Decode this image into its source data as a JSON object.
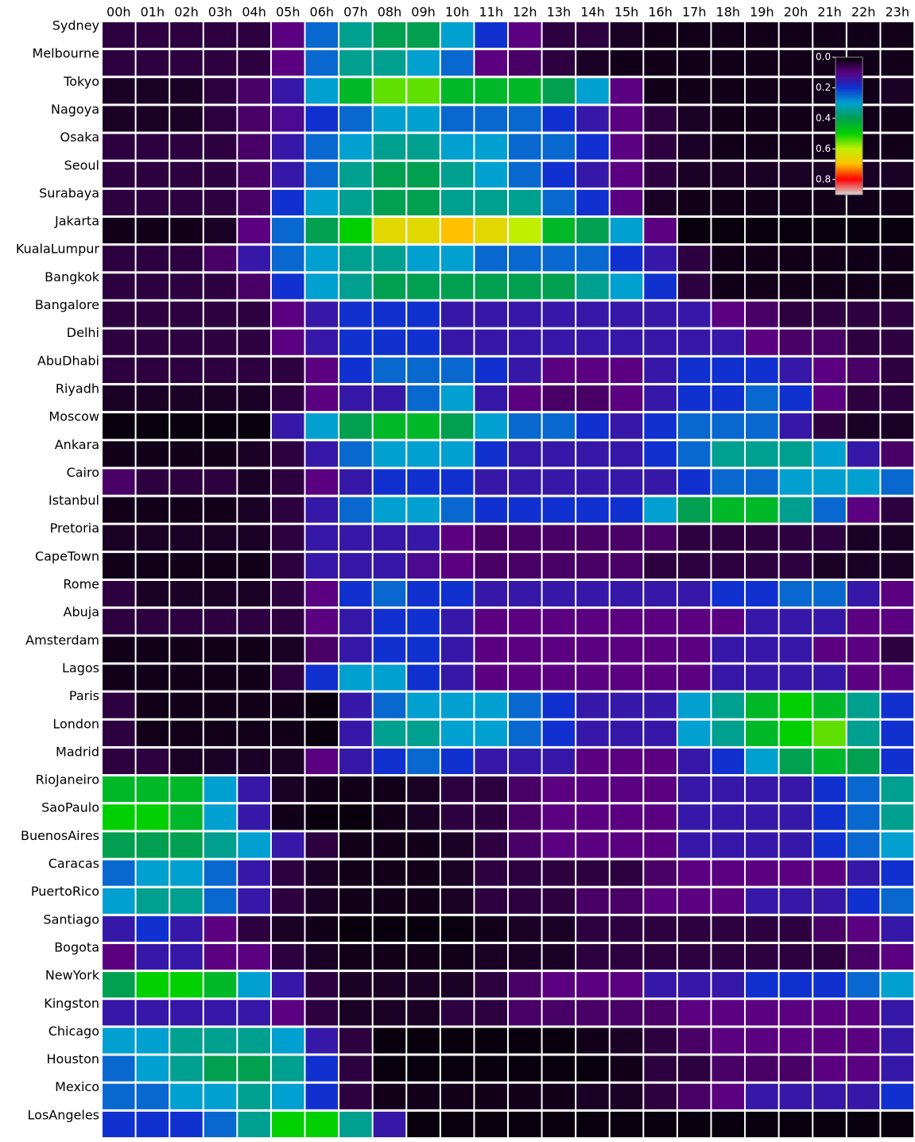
{
  "chart_data": {
    "type": "heatmap",
    "categories": [
      "00h",
      "01h",
      "02h",
      "03h",
      "04h",
      "05h",
      "06h",
      "07h",
      "08h",
      "09h",
      "10h",
      "11h",
      "12h",
      "13h",
      "14h",
      "15h",
      "16h",
      "17h",
      "18h",
      "19h",
      "20h",
      "21h",
      "22h",
      "23h"
    ],
    "y_categories": [
      "Sydney",
      "Melbourne",
      "Tokyo",
      "Nagoya",
      "Osaka",
      "Seoul",
      "Surabaya",
      "Jakarta",
      "KualaLumpur",
      "Bangkok",
      "Bangalore",
      "Delhi",
      "AbuDhabi",
      "Riyadh",
      "Moscow",
      "Ankara",
      "Cairo",
      "Istanbul",
      "Pretoria",
      "CapeTown",
      "Rome",
      "Abuja",
      "Amsterdam",
      "Lagos",
      "Paris",
      "London",
      "Madrid",
      "RioJaneiro",
      "SaoPaulo",
      "BuenosAires",
      "Caracas",
      "PuertoRico",
      "Santiago",
      "Bogota",
      "NewYork",
      "Kingston",
      "Chicago",
      "Houston",
      "Mexico",
      "LosAngeles"
    ],
    "values": [
      [
        0.05,
        0.05,
        0.05,
        0.05,
        0.05,
        0.1,
        0.25,
        0.35,
        0.4,
        0.4,
        0.3,
        0.2,
        0.1,
        0.05,
        0.05,
        0.03,
        0.02,
        0.02,
        0.02,
        0.02,
        0.02,
        0.02,
        0.02,
        0.02
      ],
      [
        0.05,
        0.05,
        0.05,
        0.05,
        0.05,
        0.1,
        0.25,
        0.35,
        0.35,
        0.3,
        0.25,
        0.1,
        0.08,
        0.05,
        0.03,
        0.02,
        0.02,
        0.02,
        0.02,
        0.02,
        0.02,
        0.02,
        0.02,
        0.02
      ],
      [
        0.03,
        0.03,
        0.03,
        0.05,
        0.08,
        0.15,
        0.3,
        0.45,
        0.55,
        0.55,
        0.45,
        0.45,
        0.45,
        0.4,
        0.3,
        0.1,
        0.02,
        0.02,
        0.02,
        0.02,
        0.02,
        0.02,
        0.02,
        0.03
      ],
      [
        0.03,
        0.03,
        0.03,
        0.05,
        0.08,
        0.12,
        0.2,
        0.25,
        0.3,
        0.3,
        0.25,
        0.25,
        0.25,
        0.2,
        0.15,
        0.1,
        0.05,
        0.03,
        0.02,
        0.02,
        0.02,
        0.02,
        0.02,
        0.02
      ],
      [
        0.05,
        0.05,
        0.05,
        0.05,
        0.08,
        0.15,
        0.25,
        0.3,
        0.35,
        0.35,
        0.3,
        0.3,
        0.25,
        0.25,
        0.2,
        0.1,
        0.05,
        0.03,
        0.02,
        0.02,
        0.02,
        0.02,
        0.02,
        0.02
      ],
      [
        0.05,
        0.05,
        0.05,
        0.05,
        0.08,
        0.15,
        0.25,
        0.35,
        0.4,
        0.4,
        0.35,
        0.3,
        0.25,
        0.2,
        0.15,
        0.1,
        0.05,
        0.03,
        0.03,
        0.03,
        0.03,
        0.03,
        0.03,
        0.03
      ],
      [
        0.05,
        0.05,
        0.05,
        0.05,
        0.08,
        0.2,
        0.3,
        0.35,
        0.4,
        0.4,
        0.35,
        0.35,
        0.35,
        0.25,
        0.2,
        0.1,
        0.03,
        0.02,
        0.02,
        0.02,
        0.02,
        0.02,
        0.02,
        0.02
      ],
      [
        0.02,
        0.02,
        0.02,
        0.03,
        0.1,
        0.25,
        0.4,
        0.5,
        0.65,
        0.65,
        0.7,
        0.65,
        0.6,
        0.45,
        0.4,
        0.3,
        0.1,
        0.01,
        0.01,
        0.01,
        0.01,
        0.01,
        0.01,
        0.01
      ],
      [
        0.05,
        0.05,
        0.05,
        0.08,
        0.15,
        0.25,
        0.3,
        0.35,
        0.35,
        0.3,
        0.3,
        0.25,
        0.25,
        0.25,
        0.25,
        0.2,
        0.15,
        0.05,
        0.02,
        0.02,
        0.02,
        0.02,
        0.02,
        0.02
      ],
      [
        0.05,
        0.05,
        0.05,
        0.05,
        0.08,
        0.2,
        0.3,
        0.35,
        0.4,
        0.4,
        0.4,
        0.4,
        0.4,
        0.4,
        0.35,
        0.3,
        0.2,
        0.05,
        0.02,
        0.02,
        0.02,
        0.02,
        0.02,
        0.02
      ],
      [
        0.05,
        0.05,
        0.05,
        0.05,
        0.05,
        0.1,
        0.15,
        0.2,
        0.2,
        0.2,
        0.15,
        0.15,
        0.15,
        0.15,
        0.15,
        0.15,
        0.15,
        0.15,
        0.1,
        0.08,
        0.05,
        0.05,
        0.05,
        0.05
      ],
      [
        0.05,
        0.05,
        0.05,
        0.05,
        0.05,
        0.1,
        0.15,
        0.2,
        0.2,
        0.2,
        0.15,
        0.15,
        0.15,
        0.15,
        0.15,
        0.15,
        0.15,
        0.15,
        0.15,
        0.1,
        0.08,
        0.08,
        0.05,
        0.05
      ],
      [
        0.05,
        0.05,
        0.05,
        0.05,
        0.05,
        0.05,
        0.1,
        0.2,
        0.25,
        0.25,
        0.25,
        0.2,
        0.15,
        0.1,
        0.1,
        0.1,
        0.15,
        0.2,
        0.2,
        0.2,
        0.15,
        0.1,
        0.08,
        0.05
      ],
      [
        0.03,
        0.03,
        0.03,
        0.03,
        0.03,
        0.05,
        0.1,
        0.15,
        0.15,
        0.25,
        0.3,
        0.15,
        0.1,
        0.08,
        0.08,
        0.1,
        0.15,
        0.2,
        0.2,
        0.25,
        0.2,
        0.1,
        0.05,
        0.05
      ],
      [
        0.01,
        0.01,
        0.01,
        0.01,
        0.01,
        0.15,
        0.3,
        0.4,
        0.45,
        0.45,
        0.4,
        0.3,
        0.25,
        0.25,
        0.2,
        0.15,
        0.2,
        0.25,
        0.25,
        0.25,
        0.15,
        0.05,
        0.03,
        0.03
      ],
      [
        0.02,
        0.02,
        0.02,
        0.02,
        0.03,
        0.05,
        0.15,
        0.25,
        0.3,
        0.3,
        0.3,
        0.2,
        0.15,
        0.15,
        0.15,
        0.15,
        0.2,
        0.25,
        0.35,
        0.35,
        0.35,
        0.3,
        0.15,
        0.08
      ],
      [
        0.08,
        0.05,
        0.05,
        0.05,
        0.03,
        0.05,
        0.1,
        0.15,
        0.2,
        0.2,
        0.2,
        0.15,
        0.15,
        0.15,
        0.15,
        0.15,
        0.15,
        0.2,
        0.25,
        0.25,
        0.3,
        0.3,
        0.3,
        0.25
      ],
      [
        0.02,
        0.02,
        0.02,
        0.02,
        0.03,
        0.05,
        0.15,
        0.25,
        0.3,
        0.3,
        0.25,
        0.2,
        0.2,
        0.2,
        0.2,
        0.2,
        0.3,
        0.4,
        0.45,
        0.45,
        0.35,
        0.25,
        0.1,
        0.05
      ],
      [
        0.03,
        0.03,
        0.03,
        0.03,
        0.03,
        0.05,
        0.15,
        0.15,
        0.15,
        0.15,
        0.1,
        0.08,
        0.08,
        0.08,
        0.08,
        0.08,
        0.08,
        0.05,
        0.05,
        0.05,
        0.05,
        0.05,
        0.03,
        0.03
      ],
      [
        0.02,
        0.02,
        0.02,
        0.02,
        0.02,
        0.05,
        0.15,
        0.15,
        0.15,
        0.12,
        0.1,
        0.08,
        0.08,
        0.08,
        0.08,
        0.08,
        0.05,
        0.05,
        0.05,
        0.05,
        0.05,
        0.03,
        0.03,
        0.03
      ],
      [
        0.05,
        0.03,
        0.03,
        0.03,
        0.03,
        0.05,
        0.1,
        0.2,
        0.25,
        0.2,
        0.2,
        0.15,
        0.15,
        0.15,
        0.15,
        0.15,
        0.15,
        0.15,
        0.2,
        0.2,
        0.25,
        0.25,
        0.15,
        0.1
      ],
      [
        0.05,
        0.05,
        0.05,
        0.05,
        0.05,
        0.05,
        0.1,
        0.15,
        0.2,
        0.2,
        0.15,
        0.1,
        0.1,
        0.1,
        0.1,
        0.1,
        0.1,
        0.1,
        0.1,
        0.15,
        0.15,
        0.15,
        0.1,
        0.1
      ],
      [
        0.02,
        0.02,
        0.02,
        0.02,
        0.02,
        0.03,
        0.08,
        0.15,
        0.2,
        0.2,
        0.15,
        0.1,
        0.1,
        0.1,
        0.1,
        0.1,
        0.1,
        0.1,
        0.15,
        0.15,
        0.15,
        0.1,
        0.1,
        0.05
      ],
      [
        0.02,
        0.02,
        0.02,
        0.02,
        0.02,
        0.05,
        0.2,
        0.3,
        0.3,
        0.2,
        0.15,
        0.1,
        0.1,
        0.1,
        0.1,
        0.1,
        0.1,
        0.1,
        0.15,
        0.15,
        0.15,
        0.15,
        0.1,
        0.1
      ],
      [
        0.05,
        0.02,
        0.02,
        0.02,
        0.02,
        0.02,
        0.01,
        0.15,
        0.25,
        0.3,
        0.3,
        0.3,
        0.25,
        0.2,
        0.15,
        0.15,
        0.15,
        0.3,
        0.35,
        0.45,
        0.5,
        0.45,
        0.35,
        0.2
      ],
      [
        0.05,
        0.02,
        0.02,
        0.02,
        0.02,
        0.02,
        0.01,
        0.15,
        0.35,
        0.35,
        0.3,
        0.3,
        0.25,
        0.2,
        0.15,
        0.15,
        0.15,
        0.3,
        0.35,
        0.45,
        0.5,
        0.55,
        0.35,
        0.2
      ],
      [
        0.05,
        0.05,
        0.03,
        0.03,
        0.03,
        0.03,
        0.1,
        0.15,
        0.2,
        0.25,
        0.2,
        0.15,
        0.15,
        0.15,
        0.1,
        0.1,
        0.1,
        0.15,
        0.2,
        0.3,
        0.4,
        0.45,
        0.4,
        0.2
      ],
      [
        0.45,
        0.45,
        0.45,
        0.3,
        0.15,
        0.03,
        0.02,
        0.02,
        0.02,
        0.03,
        0.05,
        0.05,
        0.08,
        0.1,
        0.1,
        0.1,
        0.1,
        0.15,
        0.15,
        0.15,
        0.15,
        0.2,
        0.25,
        0.35
      ],
      [
        0.5,
        0.5,
        0.45,
        0.3,
        0.15,
        0.02,
        0.01,
        0.01,
        0.02,
        0.03,
        0.05,
        0.05,
        0.08,
        0.1,
        0.1,
        0.1,
        0.1,
        0.15,
        0.15,
        0.15,
        0.15,
        0.2,
        0.25,
        0.35
      ],
      [
        0.4,
        0.4,
        0.4,
        0.35,
        0.3,
        0.15,
        0.05,
        0.02,
        0.02,
        0.02,
        0.03,
        0.05,
        0.08,
        0.1,
        0.1,
        0.1,
        0.1,
        0.15,
        0.15,
        0.15,
        0.15,
        0.2,
        0.25,
        0.3
      ],
      [
        0.25,
        0.3,
        0.3,
        0.25,
        0.15,
        0.05,
        0.03,
        0.02,
        0.02,
        0.02,
        0.03,
        0.05,
        0.05,
        0.05,
        0.05,
        0.05,
        0.08,
        0.1,
        0.1,
        0.1,
        0.1,
        0.1,
        0.15,
        0.2
      ],
      [
        0.3,
        0.35,
        0.35,
        0.25,
        0.15,
        0.05,
        0.03,
        0.02,
        0.02,
        0.02,
        0.03,
        0.05,
        0.05,
        0.05,
        0.08,
        0.08,
        0.1,
        0.1,
        0.1,
        0.15,
        0.15,
        0.15,
        0.2,
        0.25
      ],
      [
        0.15,
        0.2,
        0.15,
        0.1,
        0.05,
        0.03,
        0.02,
        0.01,
        0.01,
        0.01,
        0.01,
        0.02,
        0.03,
        0.03,
        0.05,
        0.05,
        0.05,
        0.05,
        0.05,
        0.05,
        0.05,
        0.08,
        0.1,
        0.15
      ],
      [
        0.1,
        0.15,
        0.15,
        0.1,
        0.1,
        0.05,
        0.03,
        0.02,
        0.02,
        0.02,
        0.02,
        0.03,
        0.03,
        0.03,
        0.05,
        0.05,
        0.05,
        0.05,
        0.05,
        0.05,
        0.05,
        0.05,
        0.08,
        0.1
      ],
      [
        0.4,
        0.5,
        0.5,
        0.45,
        0.3,
        0.15,
        0.05,
        0.03,
        0.03,
        0.03,
        0.03,
        0.05,
        0.08,
        0.1,
        0.1,
        0.1,
        0.15,
        0.15,
        0.15,
        0.2,
        0.2,
        0.2,
        0.25,
        0.3
      ],
      [
        0.15,
        0.15,
        0.15,
        0.15,
        0.15,
        0.1,
        0.05,
        0.03,
        0.03,
        0.03,
        0.05,
        0.05,
        0.08,
        0.08,
        0.08,
        0.08,
        0.08,
        0.1,
        0.1,
        0.1,
        0.1,
        0.1,
        0.1,
        0.15
      ],
      [
        0.3,
        0.3,
        0.35,
        0.35,
        0.35,
        0.3,
        0.15,
        0.05,
        0.01,
        0.01,
        0.01,
        0.01,
        0.01,
        0.01,
        0.02,
        0.03,
        0.05,
        0.08,
        0.1,
        0.1,
        0.1,
        0.1,
        0.1,
        0.15
      ],
      [
        0.25,
        0.3,
        0.35,
        0.4,
        0.4,
        0.35,
        0.2,
        0.05,
        0.01,
        0.01,
        0.01,
        0.01,
        0.01,
        0.01,
        0.01,
        0.02,
        0.05,
        0.05,
        0.08,
        0.08,
        0.08,
        0.1,
        0.1,
        0.15
      ],
      [
        0.25,
        0.25,
        0.3,
        0.3,
        0.35,
        0.3,
        0.2,
        0.05,
        0.02,
        0.02,
        0.02,
        0.02,
        0.02,
        0.02,
        0.03,
        0.03,
        0.05,
        0.08,
        0.1,
        0.15,
        0.15,
        0.15,
        0.15,
        0.2
      ],
      [
        0.2,
        0.2,
        0.2,
        0.25,
        0.35,
        0.5,
        0.5,
        0.35,
        0.15,
        0.01,
        0.01,
        0.01,
        0.01,
        0.01,
        0.01,
        0.01,
        0.01,
        0.01,
        0.01,
        0.01,
        0.01,
        0.01,
        0.01,
        0.01
      ]
    ],
    "colormap": [
      "#000000",
      "#5a0080",
      "#1030d0",
      "#00a0d0",
      "#00a050",
      "#00d000",
      "#c0f000",
      "#ffc000",
      "#ff0000",
      "#d8d8d8"
    ],
    "clim": [
      0,
      0.9
    ],
    "cticks": [
      {
        "value": 0,
        "label": "0.0"
      },
      0.2,
      0.4,
      0.6,
      0.8
    ]
  }
}
